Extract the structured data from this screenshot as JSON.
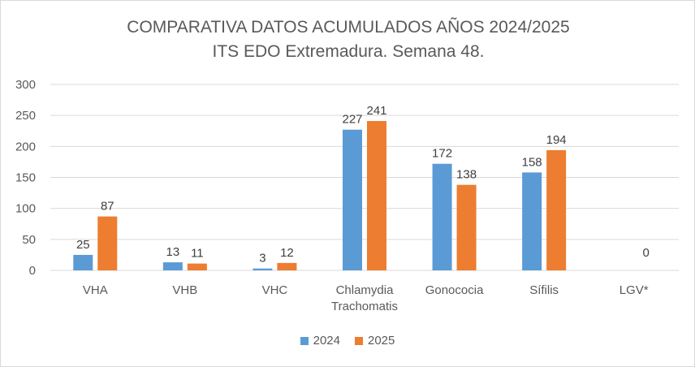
{
  "chart_data": {
    "type": "bar",
    "title": "COMPARATIVA DATOS ACUMULADOS AÑOS 2024/2025",
    "subtitle": "ITS EDO Extremadura. Semana 48.",
    "categories": [
      [
        "VHA"
      ],
      [
        "VHB"
      ],
      [
        "VHC"
      ],
      [
        "Chlamydia",
        "Trachomatis"
      ],
      [
        "Gonococia"
      ],
      [
        "Sífilis"
      ],
      [
        "LGV*"
      ]
    ],
    "series": [
      {
        "name": "2024",
        "color": "#5b9bd5",
        "values": [
          25,
          13,
          3,
          227,
          172,
          158,
          null
        ]
      },
      {
        "name": "2025",
        "color": "#ed7d31",
        "values": [
          87,
          11,
          12,
          241,
          138,
          194,
          0
        ]
      }
    ],
    "ylim": [
      0,
      300
    ],
    "yticks": [
      "0",
      "50",
      "100",
      "150",
      "200",
      "250",
      "300"
    ],
    "grid": true,
    "legend_position": "bottom"
  }
}
